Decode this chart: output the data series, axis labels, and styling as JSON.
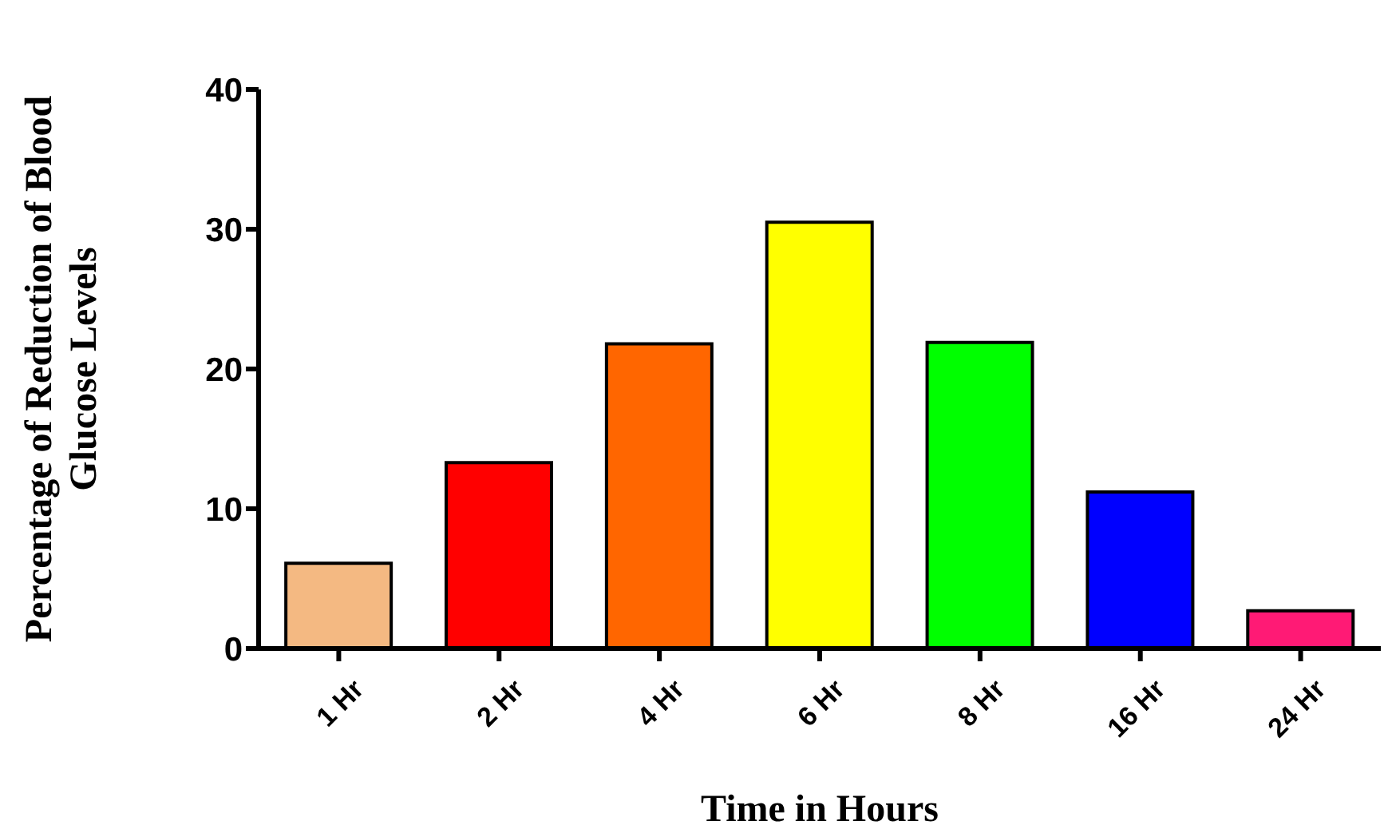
{
  "chart_data": {
    "type": "bar",
    "xlabel": "Time in Hours",
    "ylabel": "Percentage of Reduction of Blood\nGlucose Levels",
    "categories": [
      "1 Hr",
      "2 Hr",
      "4 Hr",
      "6 Hr",
      "8 Hr",
      "16 Hr",
      "24 Hr"
    ],
    "values": [
      6.1,
      13.3,
      21.8,
      30.5,
      21.9,
      11.2,
      2.7
    ],
    "colors": [
      "#f4b982",
      "#ff0000",
      "#ff6600",
      "#ffff00",
      "#00ff00",
      "#0000ff",
      "#ff1a75"
    ],
    "ylim": [
      0,
      40
    ],
    "yticks": [
      0,
      10,
      20,
      30,
      40
    ],
    "grid": false,
    "legend": false
  }
}
